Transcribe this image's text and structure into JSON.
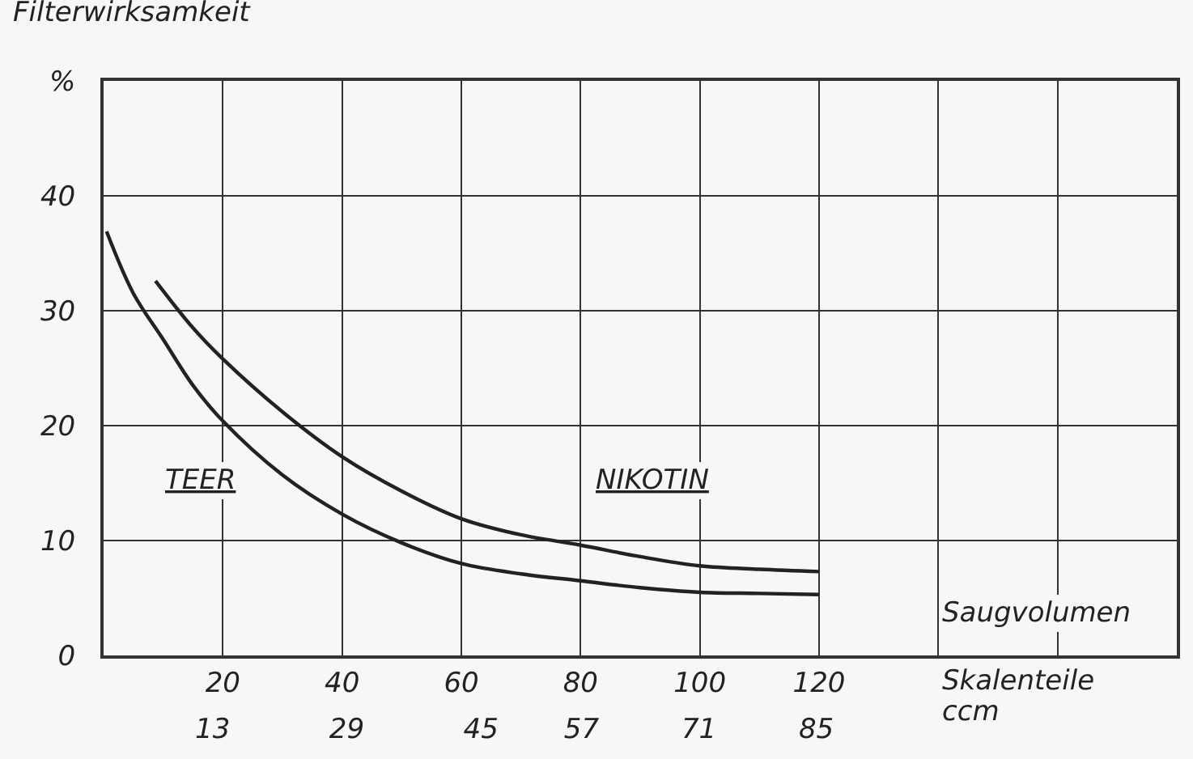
{
  "chart_data": {
    "type": "line",
    "ylabel": "Filterwirksamkeit",
    "xlabel": "Skalenteile",
    "x2label": "ccm",
    "annotations": [
      "Saugvolumen"
    ],
    "series": [
      {
        "name": "TEER",
        "color": "#222222",
        "x": [
          0.5,
          5,
          10,
          15,
          20,
          30,
          40,
          50,
          60,
          70,
          80,
          90,
          100,
          110,
          120
        ],
        "values": [
          36.9,
          31.5,
          27.5,
          23.5,
          20.4,
          15.7,
          12.3,
          9.8,
          8.0,
          7.1,
          6.5,
          5.9,
          5.5,
          5.4,
          5.3
        ]
      },
      {
        "name": "NIKOTIN",
        "color": "#222222",
        "x": [
          8.7,
          15,
          20,
          30,
          40,
          50,
          60,
          70,
          80,
          90,
          100,
          110,
          120
        ],
        "values": [
          32.6,
          28.5,
          25.8,
          21.2,
          17.3,
          14.3,
          11.9,
          10.5,
          9.6,
          8.6,
          7.8,
          7.5,
          7.3
        ]
      }
    ],
    "xlim": [
      0,
      180
    ],
    "xticks": [
      20,
      40,
      60,
      80,
      100,
      120,
      {
        "value": 140,
        "label": null
      },
      {
        "value": 160,
        "label": null
      }
    ],
    "x2lim": [
      0,
      128
    ],
    "x2ticks": [
      13,
      29,
      45,
      57,
      71,
      85
    ],
    "ylim": [
      0,
      50
    ],
    "yticks": [
      0,
      10,
      20,
      30,
      40,
      {
        "value": 50,
        "label": "%"
      }
    ],
    "grid": true,
    "legend": false,
    "marker": "none",
    "line_style": "solid"
  }
}
